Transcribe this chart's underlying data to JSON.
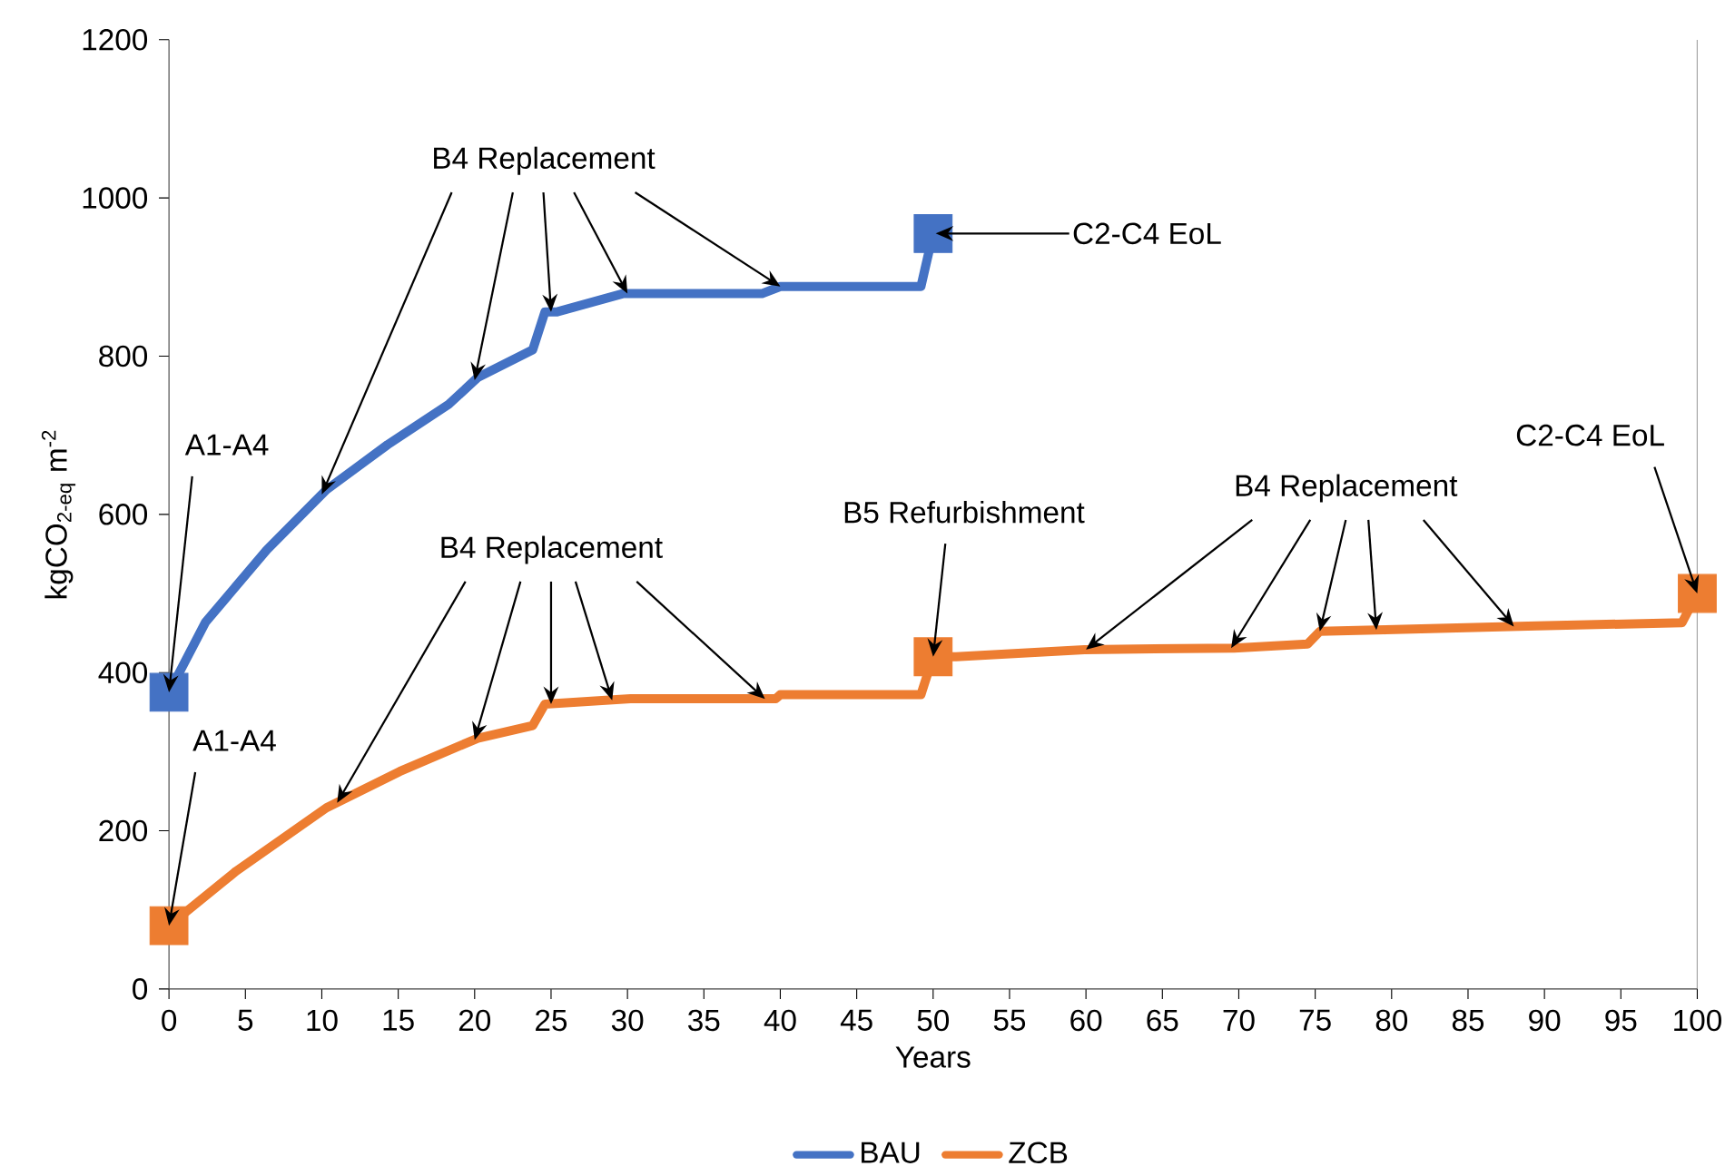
{
  "chart_data": {
    "type": "line",
    "xlabel": "Years",
    "ylabel": "kgCO$_{2-eq}$ m$^{-2}$",
    "xlim": [
      0,
      100
    ],
    "xticks": [
      0,
      5,
      10,
      15,
      20,
      25,
      30,
      35,
      40,
      45,
      50,
      55,
      60,
      65,
      70,
      75,
      80,
      85,
      90,
      95,
      100
    ],
    "ylim": [
      0,
      1200
    ],
    "yticks": [
      0,
      200,
      400,
      600,
      800,
      1000,
      1200
    ],
    "grid": false,
    "legend": "bottom",
    "series": [
      {
        "name": "BAU",
        "color": "#4472c4",
        "x": [
          0,
          2.4,
          6.4,
          10.3,
          14.3,
          18.3,
          20.2,
          23.8,
          24.6,
          25.4,
          29.7,
          38.8,
          40,
          49.2,
          50
        ],
        "values": [
          375,
          464,
          555,
          631,
          688,
          739,
          773,
          808,
          856,
          856,
          879,
          879,
          888,
          888,
          955
        ]
      },
      {
        "name": "ZCB",
        "color": "#ed7d31",
        "x": [
          0,
          4.4,
          10.3,
          15.1,
          20.2,
          23.8,
          24.6,
          30.2,
          39.7,
          40,
          49.2,
          50,
          51.5,
          59.9,
          69.7,
          74.5,
          75.3,
          79.6,
          89.5,
          99,
          100
        ],
        "values": [
          80,
          149,
          229,
          275,
          317,
          333,
          360,
          367,
          367,
          372,
          372,
          420,
          420,
          429,
          431,
          436,
          452,
          454,
          459,
          463,
          500
        ]
      },
      {
        "type": "scatter",
        "marker": "square",
        "color": "#4472c4",
        "x": [
          0,
          50
        ],
        "values": [
          375,
          955
        ]
      },
      {
        "type": "scatter",
        "marker": "square",
        "color": "#ed7d31",
        "x": [
          0,
          50,
          100
        ],
        "values": [
          80,
          420,
          500
        ]
      }
    ],
    "annotations": [
      {
        "text": "A1-A4",
        "x": 0,
        "y": 375
      },
      {
        "text": "B4 Replacement",
        "x": 25,
        "y": 856
      },
      {
        "text": "C2-C4 EoL",
        "x": 50,
        "y": 955
      },
      {
        "text": "A1-A4",
        "x": 0,
        "y": 80
      },
      {
        "text": "B4 Replacement",
        "x": 25,
        "y": 360
      },
      {
        "text": "B5 Refurbishment",
        "x": 50,
        "y": 420
      },
      {
        "text": "B4 Replacement",
        "x": 75.3,
        "y": 452
      },
      {
        "text": "C2-C4 EoL",
        "x": 100,
        "y": 500
      }
    ]
  }
}
